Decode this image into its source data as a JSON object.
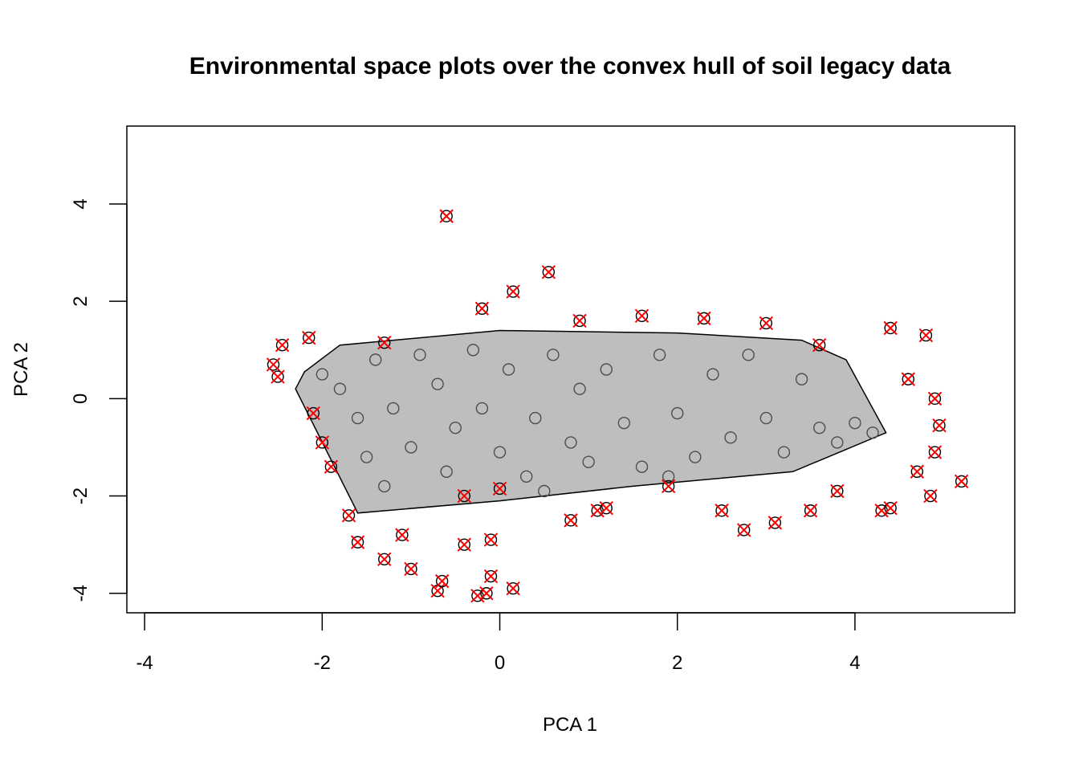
{
  "chart_data": {
    "type": "scatter",
    "title": "Environmental space plots over the convex hull of soil legacy data",
    "xlabel": "PCA 1",
    "ylabel": "PCA 2",
    "xlim": [
      -4.2,
      5.8
    ],
    "ylim": [
      -4.4,
      5.6
    ],
    "x_ticks": [
      -4,
      -2,
      0,
      2,
      4
    ],
    "y_ticks": [
      -4,
      -2,
      0,
      2,
      4
    ],
    "grid": false,
    "legend": "none",
    "colors": {
      "hull_fill": "#bebebe",
      "hull_outline": "#000000",
      "legacy_points": "#4d4d4d",
      "outside_points": "#ff0000",
      "outside_circle": "#000000"
    },
    "series": [
      {
        "role": "convex hull polygon",
        "points": [
          [
            -2.2,
            0.55
          ],
          [
            -1.8,
            1.1
          ],
          [
            0.0,
            1.4
          ],
          [
            2.0,
            1.35
          ],
          [
            3.4,
            1.2
          ],
          [
            3.9,
            0.8
          ],
          [
            4.35,
            -0.7
          ],
          [
            3.3,
            -1.5
          ],
          [
            1.5,
            -1.8
          ],
          [
            0.0,
            -2.1
          ],
          [
            -1.6,
            -2.35
          ],
          [
            -2.3,
            0.2
          ]
        ]
      },
      {
        "role": "legacy soil points (inside hull)",
        "marker": "open circle",
        "points": [
          [
            -2.0,
            0.5
          ],
          [
            -1.8,
            0.2
          ],
          [
            -1.6,
            -0.4
          ],
          [
            -1.5,
            -1.2
          ],
          [
            -1.4,
            0.8
          ],
          [
            -1.2,
            -0.2
          ],
          [
            -1.0,
            -1.0
          ],
          [
            -0.9,
            0.9
          ],
          [
            -0.7,
            0.3
          ],
          [
            -0.6,
            -1.5
          ],
          [
            -0.5,
            -0.6
          ],
          [
            -0.3,
            1.0
          ],
          [
            -0.2,
            -0.2
          ],
          [
            0.0,
            -1.1
          ],
          [
            0.1,
            0.6
          ],
          [
            0.3,
            -1.6
          ],
          [
            0.4,
            -0.4
          ],
          [
            0.6,
            0.9
          ],
          [
            0.8,
            -0.9
          ],
          [
            0.9,
            0.2
          ],
          [
            1.0,
            -1.3
          ],
          [
            1.2,
            0.6
          ],
          [
            1.4,
            -0.5
          ],
          [
            1.6,
            -1.4
          ],
          [
            1.8,
            0.9
          ],
          [
            2.0,
            -0.3
          ],
          [
            2.2,
            -1.2
          ],
          [
            2.4,
            0.5
          ],
          [
            2.6,
            -0.8
          ],
          [
            2.8,
            0.9
          ],
          [
            3.0,
            -0.4
          ],
          [
            3.2,
            -1.1
          ],
          [
            3.4,
            0.4
          ],
          [
            3.6,
            -0.6
          ],
          [
            3.8,
            -0.9
          ],
          [
            4.0,
            -0.5
          ],
          [
            4.2,
            -0.7
          ],
          [
            -1.3,
            -1.8
          ],
          [
            0.5,
            -1.9
          ],
          [
            1.9,
            -1.6
          ]
        ]
      },
      {
        "role": "points outside hull",
        "marker": "circle with red x",
        "points": [
          [
            -0.6,
            3.75
          ],
          [
            0.55,
            2.6
          ],
          [
            0.15,
            2.2
          ],
          [
            -2.45,
            1.1
          ],
          [
            -2.55,
            0.7
          ],
          [
            -2.5,
            0.45
          ],
          [
            -2.15,
            1.25
          ],
          [
            -2.1,
            -0.3
          ],
          [
            -2.0,
            -0.9
          ],
          [
            -1.9,
            -1.4
          ],
          [
            -1.7,
            -2.4
          ],
          [
            -1.6,
            -2.95
          ],
          [
            -1.3,
            -3.3
          ],
          [
            -1.1,
            -2.8
          ],
          [
            -1.0,
            -3.5
          ],
          [
            -0.7,
            -3.95
          ],
          [
            -0.65,
            -3.75
          ],
          [
            -0.4,
            -3.0
          ],
          [
            -0.25,
            -4.05
          ],
          [
            -0.15,
            -4.0
          ],
          [
            -0.1,
            -3.65
          ],
          [
            0.15,
            -3.9
          ],
          [
            -0.1,
            -2.9
          ],
          [
            0.0,
            -1.85
          ],
          [
            0.8,
            -2.5
          ],
          [
            1.1,
            -2.3
          ],
          [
            1.2,
            -2.25
          ],
          [
            1.9,
            -1.8
          ],
          [
            2.5,
            -2.3
          ],
          [
            2.75,
            -2.7
          ],
          [
            3.1,
            -2.55
          ],
          [
            3.5,
            -2.3
          ],
          [
            4.3,
            -2.3
          ],
          [
            4.4,
            -2.25
          ],
          [
            4.85,
            -2.0
          ],
          [
            5.2,
            -1.7
          ],
          [
            4.9,
            -1.1
          ],
          [
            4.95,
            -0.55
          ],
          [
            4.9,
            0.0
          ],
          [
            4.8,
            1.3
          ],
          [
            4.4,
            1.45
          ],
          [
            3.6,
            1.1
          ],
          [
            3.0,
            1.55
          ],
          [
            2.3,
            1.65
          ],
          [
            1.6,
            1.7
          ],
          [
            0.9,
            1.6
          ],
          [
            -0.2,
            1.85
          ],
          [
            -1.3,
            1.15
          ],
          [
            -0.4,
            -2.0
          ],
          [
            3.8,
            -1.9
          ],
          [
            4.7,
            -1.5
          ],
          [
            4.6,
            0.4
          ]
        ]
      }
    ]
  }
}
